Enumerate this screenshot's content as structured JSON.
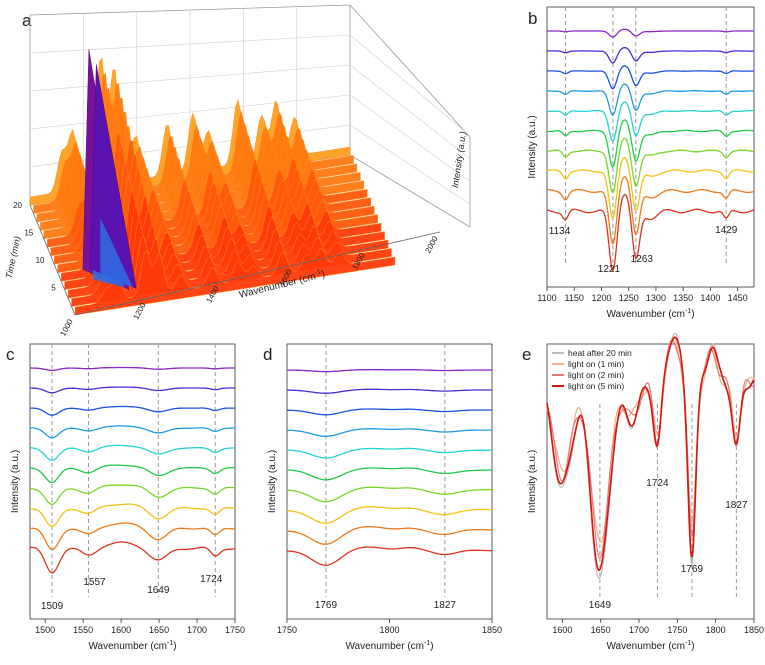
{
  "panel_letters": [
    "a",
    "b",
    "c",
    "d",
    "e"
  ],
  "colors": {
    "rainbow": [
      "#8e24c7",
      "#4b2bd6",
      "#1a52e0",
      "#1f9be0",
      "#25d3d3",
      "#22c94a",
      "#79d62b",
      "#f2c211",
      "#ee7a1c",
      "#e0331f"
    ],
    "e_series": [
      "#bdbdbd",
      "#f3b08a",
      "#e57b7b",
      "#d4170f"
    ],
    "surface_base": "#ff3a0a",
    "surface_purple": "#7a119c"
  },
  "chart_data": [
    {
      "panel": "a",
      "type": "area",
      "projection": "3d-waterfall",
      "xlabel": "Wavenumber (cm⁻¹)",
      "ylabel": "Time (min)",
      "zlabel": "Intensity (a.u.)",
      "x_ticks": [
        "1000",
        "1200",
        "1400",
        "1600",
        "1800",
        "2000"
      ],
      "y_ticks": [
        "5",
        "10",
        "15",
        "20"
      ],
      "xlim": [
        1000,
        2000
      ],
      "ylim": [
        0,
        20
      ],
      "peaks": [
        {
          "x": 1100,
          "height": 0.3
        },
        {
          "x": 1134,
          "height": 0.45
        },
        {
          "x": 1221,
          "height": 1.0
        },
        {
          "x": 1263,
          "height": 0.9
        },
        {
          "x": 1330,
          "height": 0.35
        },
        {
          "x": 1429,
          "height": 0.4
        },
        {
          "x": 1509,
          "height": 0.45
        },
        {
          "x": 1557,
          "height": 0.3
        },
        {
          "x": 1649,
          "height": 0.5
        },
        {
          "x": 1724,
          "height": 0.35
        },
        {
          "x": 1769,
          "height": 0.45
        },
        {
          "x": 1827,
          "height": 0.3
        }
      ]
    },
    {
      "panel": "b",
      "type": "line",
      "xlabel": "Wavenumber (cm⁻¹)",
      "ylabel": "Intensity (a.u.)",
      "xlim": [
        1100,
        1480
      ],
      "x_ticks": [
        1100,
        1150,
        1200,
        1250,
        1300,
        1350,
        1400,
        1450
      ],
      "n_series": 10,
      "dashed_refs": [
        1134,
        1221,
        1263,
        1429
      ],
      "annotations": [
        {
          "text": "1134",
          "x": 1134
        },
        {
          "text": "1221",
          "x": 1221
        },
        {
          "text": "1263",
          "x": 1263
        },
        {
          "text": "1429",
          "x": 1429
        }
      ],
      "features": [
        {
          "center": 1134,
          "width": 5,
          "depth": 0.25
        },
        {
          "center": 1221,
          "width": 7,
          "depth": 1.8
        },
        {
          "center": 1243,
          "width": 10,
          "depth": -0.55
        },
        {
          "center": 1263,
          "width": 7,
          "depth": 1.5
        },
        {
          "center": 1290,
          "width": 12,
          "depth": 0.2
        },
        {
          "center": 1429,
          "width": 5,
          "depth": 0.25
        }
      ]
    },
    {
      "panel": "c",
      "type": "line",
      "xlabel": "Wavenumber (cm⁻¹)",
      "ylabel": "Intensity (a.u.)",
      "xlim": [
        1480,
        1750
      ],
      "x_ticks": [
        1500,
        1550,
        1600,
        1650,
        1700,
        1750
      ],
      "n_series": 10,
      "dashed_refs": [
        1509,
        1557,
        1649,
        1724
      ],
      "annotations": [
        {
          "text": "1509",
          "x": 1509
        },
        {
          "text": "1557",
          "x": 1557
        },
        {
          "text": "1649",
          "x": 1649
        },
        {
          "text": "1724",
          "x": 1724
        }
      ],
      "features": [
        {
          "center": 1509,
          "width": 9,
          "depth": 1.0
        },
        {
          "center": 1557,
          "width": 10,
          "depth": 0.35
        },
        {
          "center": 1600,
          "width": 25,
          "depth": -0.2
        },
        {
          "center": 1649,
          "width": 12,
          "depth": 0.55
        },
        {
          "center": 1724,
          "width": 6,
          "depth": 0.35
        }
      ]
    },
    {
      "panel": "d",
      "type": "line",
      "xlabel": "Wavenumber (cm⁻¹)",
      "ylabel": "Intensity (a.u.)",
      "xlim": [
        1750,
        1850
      ],
      "x_ticks": [
        1750,
        1800,
        1850
      ],
      "n_series": 10,
      "dashed_refs": [
        1769,
        1827
      ],
      "annotations": [
        {
          "text": "1769",
          "x": 1769
        },
        {
          "text": "1827",
          "x": 1827
        }
      ],
      "features": [
        {
          "center": 1769,
          "width": 7,
          "depth": 0.9
        },
        {
          "center": 1790,
          "width": 8,
          "depth": -0.2
        },
        {
          "center": 1810,
          "width": 5,
          "depth": -0.15
        },
        {
          "center": 1827,
          "width": 6,
          "depth": 0.3
        }
      ]
    },
    {
      "panel": "e",
      "type": "line",
      "xlabel": "Wavenumber (cm⁻¹)",
      "ylabel": "Intensity (a.u.)",
      "xlim": [
        1580,
        1850
      ],
      "x_ticks": [
        1600,
        1650,
        1700,
        1750,
        1800,
        1850
      ],
      "legend_position": "top-left",
      "series": [
        {
          "name": "heat after 20 min",
          "scale": 1.05
        },
        {
          "name": "light on (1 min)",
          "scale": 0.85
        },
        {
          "name": "light on (2 min)",
          "scale": 0.9
        },
        {
          "name": "light on (5 min)",
          "scale": 1.0
        }
      ],
      "dashed_refs": [
        1649,
        1724,
        1769,
        1827
      ],
      "annotations": [
        {
          "text": "1649",
          "x": 1649
        },
        {
          "text": "1724",
          "x": 1724
        },
        {
          "text": "1769",
          "x": 1769
        },
        {
          "text": "1827",
          "x": 1827
        }
      ]
    }
  ]
}
